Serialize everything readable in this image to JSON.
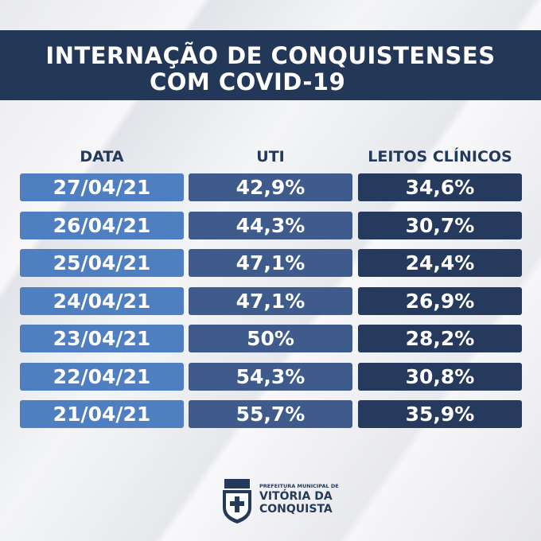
{
  "header": {
    "title": [
      "INTERNAÇÃO DE CONQUISTENSES",
      "COM COVID-19"
    ]
  },
  "table": {
    "columns": [
      "DATA",
      "UTI",
      "LEITOS CLÍNICOS"
    ],
    "rows": [
      [
        "27/04/21",
        "42,9%",
        "34,6%"
      ],
      [
        "26/04/21",
        "44,3%",
        "30,7%"
      ],
      [
        "25/04/21",
        "47,1%",
        "24,4%"
      ],
      [
        "24/04/21",
        "47,1%",
        "26,9%"
      ],
      [
        "23/04/21",
        "50%",
        "28,2%"
      ],
      [
        "22/04/21",
        "54,3%",
        "30,8%"
      ],
      [
        "21/04/21",
        "55,7%",
        "35,9%"
      ]
    ]
  },
  "footer": {
    "logo": [
      "PREFEITURA MUNICIPAL DE",
      "VITÓRIA DA",
      "CONQUISTA"
    ]
  }
}
